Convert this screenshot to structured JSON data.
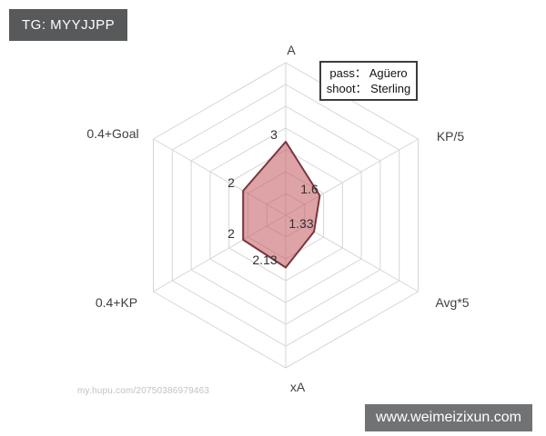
{
  "header_badge": {
    "label": "TG: MYYJJPP",
    "bg_color": "#58595b"
  },
  "footer_badge": {
    "label": "www.weimeizixun.com",
    "bg_color": "#717274"
  },
  "watermark": {
    "text": "my.hupu.com/20750386979463"
  },
  "legend": {
    "lines": [
      "pass： Agüero",
      "shoot： Sterling"
    ],
    "position": "top-right"
  },
  "chart_data": {
    "type": "radar",
    "title": "",
    "categories": [
      "A",
      "KP/5",
      "Avg*5",
      "xA",
      "0.4+KP",
      "0.4+Goal"
    ],
    "series": [
      {
        "name": "pass: Agüero / shoot: Sterling",
        "values": [
          3,
          1.6,
          1.33,
          2.13,
          2,
          2
        ]
      }
    ],
    "value_labels": [
      "3",
      "1.6",
      "1.33",
      "2.13",
      "2",
      "2"
    ],
    "rings": 7,
    "axis_range": [
      0,
      7
    ],
    "grid": true,
    "grid_color": "#d6d6d6",
    "fill_color": "#c1585e",
    "fill_opacity": 0.55,
    "stroke_color": "#7a353c",
    "legend_position": "top-right"
  }
}
